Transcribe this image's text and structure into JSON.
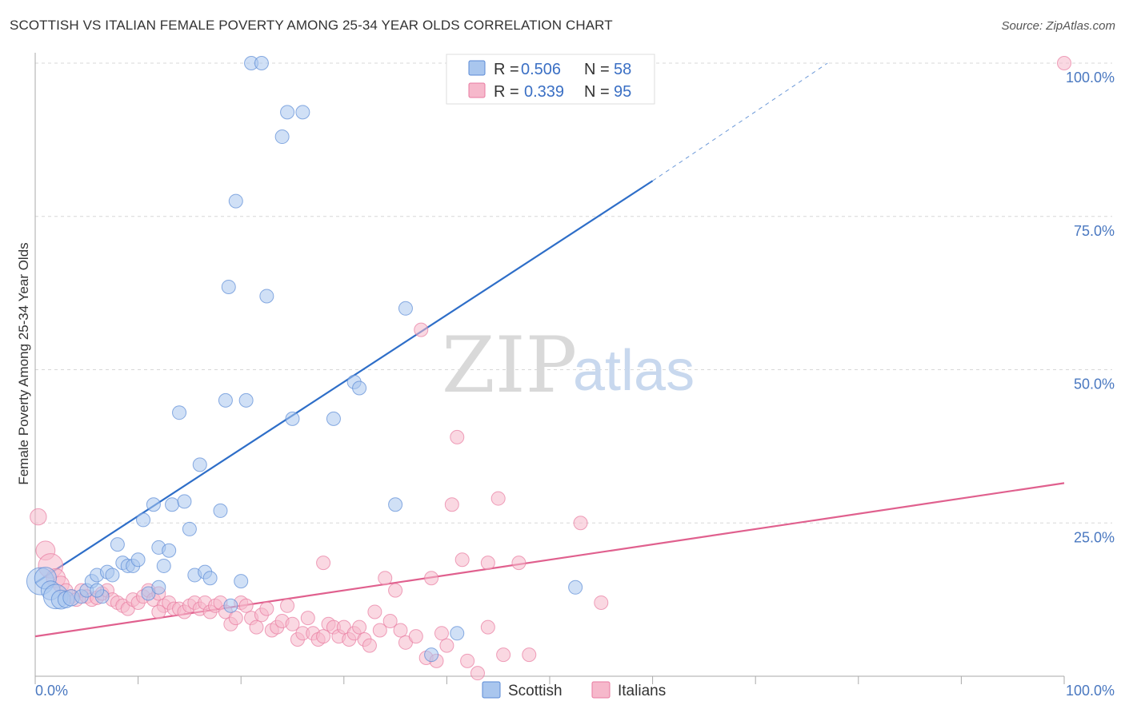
{
  "header": {
    "title": "SCOTTISH VS ITALIAN FEMALE POVERTY AMONG 25-34 YEAR OLDS CORRELATION CHART",
    "source": "Source: ZipAtlas.com"
  },
  "watermark": {
    "zip": "ZIP",
    "atlas": "atlas"
  },
  "legend": {
    "r_label": "R =",
    "n_label": "N =",
    "rows": [
      {
        "r": "0.506",
        "n": "58",
        "color": "#a9c6ee"
      },
      {
        "r": "0.339",
        "n": "95",
        "color": "#f6b8cb"
      }
    ]
  },
  "colors": {
    "scottish_fill": "#a9c6ee",
    "scottish_stroke": "#5a8ad6",
    "scottish_line": "#2e6ec8",
    "italian_fill": "#f6b8cb",
    "italian_stroke": "#e87aa0",
    "italian_line": "#e0608e"
  },
  "chart_data": {
    "type": "scatter",
    "title": "SCOTTISH VS ITALIAN FEMALE POVERTY AMONG 25-34 YEAR OLDS CORRELATION CHART",
    "xlabel": "",
    "ylabel": "Female Poverty Among 25-34 Year Olds",
    "xlim": [
      0,
      100
    ],
    "ylim": [
      0,
      100
    ],
    "x_tick_labels": [
      "0.0%",
      "100.0%"
    ],
    "y_ticks": [
      25,
      50,
      75,
      100
    ],
    "y_tick_labels": [
      "25.0%",
      "50.0%",
      "75.0%",
      "100.0%"
    ],
    "grid": true,
    "legend_position": "top-center",
    "series": [
      {
        "name": "Scottish",
        "r": 0.506,
        "n": 58,
        "trend": {
          "x": [
            0,
            60
          ],
          "y": [
            15.2,
            80.8
          ],
          "dashed_extension_to": [
            77,
            100
          ]
        },
        "points": [
          [
            0.5,
            15.5,
            20
          ],
          [
            1,
            16,
            16
          ],
          [
            1.5,
            14,
            14
          ],
          [
            2,
            13,
            18
          ],
          [
            2.5,
            12.5,
            14
          ],
          [
            3,
            12.5,
            12
          ],
          [
            3.5,
            12.8,
            12
          ],
          [
            4.5,
            13,
            10
          ],
          [
            5,
            14,
            10
          ],
          [
            5.5,
            15.5,
            10
          ],
          [
            6,
            16.5,
            10
          ],
          [
            6.5,
            13,
            10
          ],
          [
            7,
            17,
            10
          ],
          [
            7.5,
            16.5,
            10
          ],
          [
            8,
            21.5,
            10
          ],
          [
            8.5,
            18.5,
            10
          ],
          [
            9,
            18,
            10
          ],
          [
            9.5,
            18,
            10
          ],
          [
            10,
            19,
            10
          ],
          [
            10.5,
            25.5,
            10
          ],
          [
            11,
            13.5,
            10
          ],
          [
            11.5,
            28,
            10
          ],
          [
            12,
            21,
            10
          ],
          [
            12.5,
            18,
            10
          ],
          [
            13,
            20.5,
            10
          ],
          [
            13.3,
            28,
            10
          ],
          [
            14,
            43,
            10
          ],
          [
            14.5,
            28.5,
            10
          ],
          [
            15,
            24,
            10
          ],
          [
            15.5,
            16.5,
            10
          ],
          [
            16,
            34.5,
            10
          ],
          [
            16.5,
            17,
            10
          ],
          [
            17,
            16,
            10
          ],
          [
            18,
            27,
            10
          ],
          [
            18.5,
            45,
            10
          ],
          [
            19,
            11.5,
            10
          ],
          [
            19.5,
            77.5,
            10
          ],
          [
            20,
            15.5,
            10
          ],
          [
            20.5,
            45,
            10
          ],
          [
            21,
            100,
            10
          ],
          [
            22,
            100,
            10
          ],
          [
            22.5,
            62,
            10
          ],
          [
            24,
            88,
            10
          ],
          [
            24.5,
            92,
            10
          ],
          [
            25,
            42,
            10
          ],
          [
            26,
            92,
            10
          ],
          [
            29,
            42,
            10
          ],
          [
            31,
            48,
            10
          ],
          [
            31.5,
            47,
            10
          ],
          [
            35,
            28,
            10
          ],
          [
            36,
            60,
            10
          ],
          [
            38.5,
            3.5,
            10
          ],
          [
            41,
            7,
            10
          ],
          [
            44,
            100,
            10
          ],
          [
            52.5,
            14.5,
            10
          ],
          [
            18.8,
            63.5,
            10
          ],
          [
            12,
            14.5,
            10
          ],
          [
            6,
            14,
            10
          ]
        ]
      },
      {
        "name": "Italians",
        "r": 0.339,
        "n": 95,
        "trend": {
          "x": [
            0,
            100
          ],
          "y": [
            6.5,
            31.5
          ]
        },
        "points": [
          [
            0.3,
            26,
            12
          ],
          [
            1,
            20.5,
            14
          ],
          [
            1.5,
            18,
            18
          ],
          [
            2,
            16,
            14
          ],
          [
            2.5,
            15,
            12
          ],
          [
            3,
            14,
            10
          ],
          [
            3.5,
            13,
            10
          ],
          [
            4,
            12.5,
            10
          ],
          [
            4.5,
            14,
            10
          ],
          [
            5,
            13,
            10
          ],
          [
            5.5,
            12.5,
            10
          ],
          [
            6,
            12.8,
            10
          ],
          [
            6.5,
            13.5,
            10
          ],
          [
            7,
            14,
            10
          ],
          [
            7.5,
            12.5,
            10
          ],
          [
            8,
            12,
            10
          ],
          [
            8.5,
            11.5,
            10
          ],
          [
            9,
            11,
            10
          ],
          [
            9.5,
            12.5,
            10
          ],
          [
            10,
            12,
            10
          ],
          [
            10.5,
            13,
            10
          ],
          [
            11,
            14,
            10
          ],
          [
            11.5,
            12.5,
            10
          ],
          [
            12,
            13.5,
            10
          ],
          [
            12.5,
            11.5,
            10
          ],
          [
            13,
            12,
            10
          ],
          [
            13.5,
            11,
            10
          ],
          [
            14,
            11,
            10
          ],
          [
            14.5,
            10.5,
            10
          ],
          [
            15,
            11.5,
            10
          ],
          [
            15.5,
            12,
            10
          ],
          [
            16,
            11,
            10
          ],
          [
            16.5,
            12,
            10
          ],
          [
            17,
            10.5,
            10
          ],
          [
            17.5,
            11.5,
            10
          ],
          [
            18,
            12,
            10
          ],
          [
            18.5,
            10.5,
            10
          ],
          [
            19,
            8.5,
            10
          ],
          [
            19.5,
            9.5,
            10
          ],
          [
            20,
            12,
            10
          ],
          [
            20.5,
            11.5,
            10
          ],
          [
            21,
            9.5,
            10
          ],
          [
            21.5,
            8,
            10
          ],
          [
            22,
            10,
            10
          ],
          [
            22.5,
            11,
            10
          ],
          [
            23,
            7.5,
            10
          ],
          [
            23.5,
            8,
            10
          ],
          [
            24,
            9,
            10
          ],
          [
            24.5,
            11.5,
            10
          ],
          [
            25,
            8.5,
            10
          ],
          [
            25.5,
            6,
            10
          ],
          [
            26,
            7,
            10
          ],
          [
            26.5,
            9.5,
            10
          ],
          [
            27,
            7,
            10
          ],
          [
            27.5,
            6,
            10
          ],
          [
            28,
            6.5,
            10
          ],
          [
            28.5,
            8.5,
            10
          ],
          [
            29,
            8,
            10
          ],
          [
            29.5,
            6.5,
            10
          ],
          [
            30,
            8,
            10
          ],
          [
            30.5,
            6,
            10
          ],
          [
            31,
            7,
            10
          ],
          [
            31.5,
            8,
            10
          ],
          [
            32,
            6,
            10
          ],
          [
            32.5,
            5,
            10
          ],
          [
            33,
            10.5,
            10
          ],
          [
            33.5,
            7.5,
            10
          ],
          [
            34,
            16,
            10
          ],
          [
            34.5,
            9,
            10
          ],
          [
            35,
            14,
            10
          ],
          [
            35.5,
            7.5,
            10
          ],
          [
            36,
            5.5,
            10
          ],
          [
            37,
            6.5,
            10
          ],
          [
            37.5,
            56.5,
            10
          ],
          [
            38,
            3,
            10
          ],
          [
            38.5,
            16,
            10
          ],
          [
            39,
            2.5,
            10
          ],
          [
            39.5,
            7,
            10
          ],
          [
            40,
            5,
            10
          ],
          [
            41,
            39,
            10
          ],
          [
            40.5,
            28,
            10
          ],
          [
            41.5,
            19,
            10
          ],
          [
            42,
            2.5,
            10
          ],
          [
            43,
            0.5,
            10
          ],
          [
            44,
            8,
            10
          ],
          [
            45,
            29,
            10
          ],
          [
            45.5,
            3.5,
            10
          ],
          [
            47,
            18.5,
            10
          ],
          [
            48,
            3.5,
            10
          ],
          [
            53,
            25,
            10
          ],
          [
            55,
            12,
            10
          ],
          [
            100,
            100,
            10
          ],
          [
            12,
            10.5,
            10
          ],
          [
            28,
            18.5,
            10
          ],
          [
            44,
            18.5,
            10
          ]
        ]
      }
    ]
  },
  "bottom_legend": {
    "items": [
      {
        "label": "Scottish",
        "color": "#a9c6ee"
      },
      {
        "label": "Italians",
        "color": "#f6b8cb"
      }
    ]
  }
}
